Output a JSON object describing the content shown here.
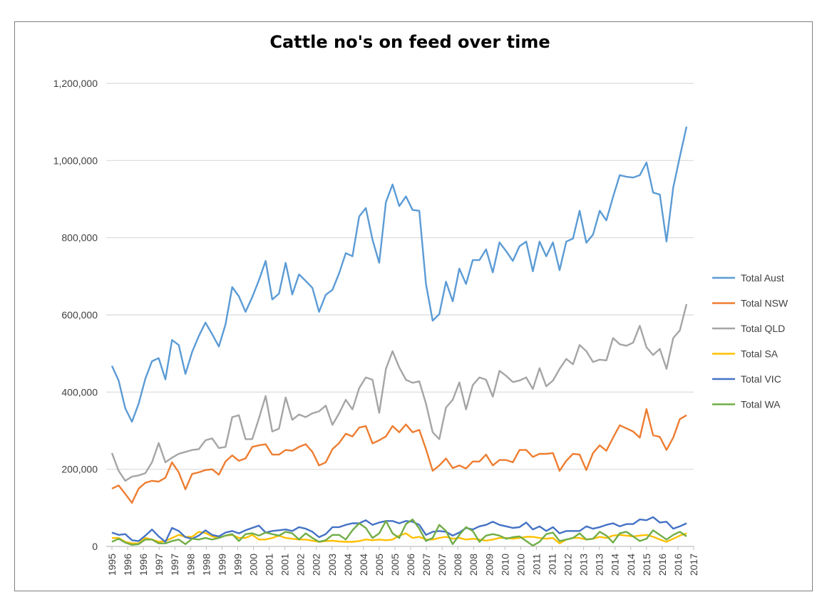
{
  "chart_data": {
    "type": "line",
    "title": "Cattle no's on feed over time",
    "xlabel": "",
    "ylabel": "",
    "ylim": [
      0,
      1200000
    ],
    "yticks": [
      0,
      200000,
      400000,
      600000,
      800000,
      1000000,
      1200000
    ],
    "ytick_labels": [
      "0",
      "200,000",
      "400,000",
      "600,000",
      "800,000",
      "1,000,000",
      "1,200,000"
    ],
    "xtick_labels": [
      "1995",
      "1996",
      "1996",
      "1997",
      "1997",
      "1998",
      "1998",
      "1999",
      "1999",
      "2000",
      "2001",
      "2001",
      "2002",
      "2002",
      "2003",
      "2004",
      "2004",
      "2005",
      "2005",
      "2006",
      "2007",
      "2007",
      "2008",
      "2008",
      "2009",
      "2010",
      "2010",
      "2011",
      "2011",
      "2012",
      "2013",
      "2013",
      "2014",
      "2014",
      "2015",
      "2016",
      "2016",
      "2017"
    ],
    "grid": "horizontal",
    "legend_position": "right",
    "series": [
      {
        "name": "Total Aust",
        "color": "#5b9bd5",
        "values": [
          468000,
          430000,
          358000,
          323000,
          370000,
          435000,
          480000,
          488000,
          433000,
          535000,
          522000,
          447000,
          504000,
          545000,
          580000,
          550000,
          518000,
          575000,
          672000,
          648000,
          608000,
          646000,
          690000,
          740000,
          640000,
          655000,
          735000,
          653000,
          705000,
          688000,
          670000,
          608000,
          652000,
          665000,
          708000,
          760000,
          752000,
          855000,
          877000,
          795000,
          735000,
          892000,
          938000,
          882000,
          907000,
          872000,
          870000,
          680000,
          585000,
          602000,
          686000,
          635000,
          720000,
          680000,
          742000,
          742000,
          770000,
          710000,
          788000,
          765000,
          740000,
          778000,
          790000,
          713000,
          790000,
          752000,
          788000,
          716000,
          790000,
          798000,
          870000,
          787000,
          808000,
          870000,
          845000,
          906000,
          962000,
          958000,
          956000,
          962000,
          995000,
          917000,
          912000,
          790000,
          930000,
          1010000,
          1088000
        ]
      },
      {
        "name": "Total NSW",
        "color": "#ed7d31",
        "values": [
          150000,
          158000,
          136000,
          113000,
          150000,
          165000,
          170000,
          168000,
          178000,
          218000,
          192000,
          148000,
          188000,
          192000,
          198000,
          200000,
          186000,
          220000,
          236000,
          222000,
          228000,
          258000,
          262000,
          265000,
          238000,
          238000,
          250000,
          248000,
          258000,
          265000,
          245000,
          210000,
          218000,
          252000,
          268000,
          292000,
          285000,
          308000,
          312000,
          267000,
          275000,
          285000,
          312000,
          296000,
          316000,
          296000,
          302000,
          252000,
          196000,
          210000,
          228000,
          203000,
          210000,
          202000,
          220000,
          220000,
          238000,
          210000,
          224000,
          224000,
          218000,
          250000,
          250000,
          232000,
          240000,
          240000,
          242000,
          196000,
          222000,
          240000,
          238000,
          198000,
          242000,
          262000,
          248000,
          282000,
          314000,
          306000,
          298000,
          282000,
          356000,
          288000,
          284000,
          250000,
          282000,
          330000,
          340000
        ]
      },
      {
        "name": "Total QLD",
        "color": "#a5a5a5",
        "values": [
          242000,
          196000,
          170000,
          181000,
          184000,
          190000,
          218000,
          268000,
          218000,
          230000,
          240000,
          245000,
          250000,
          252000,
          275000,
          280000,
          255000,
          258000,
          335000,
          340000,
          278000,
          278000,
          332000,
          390000,
          298000,
          305000,
          386000,
          328000,
          342000,
          335000,
          345000,
          350000,
          365000,
          315000,
          345000,
          380000,
          355000,
          410000,
          438000,
          432000,
          346000,
          460000,
          506000,
          464000,
          432000,
          424000,
          428000,
          370000,
          296000,
          278000,
          360000,
          380000,
          425000,
          355000,
          418000,
          438000,
          432000,
          388000,
          455000,
          442000,
          426000,
          430000,
          438000,
          408000,
          462000,
          415000,
          430000,
          460000,
          486000,
          472000,
          522000,
          506000,
          478000,
          484000,
          482000,
          540000,
          524000,
          520000,
          528000,
          572000,
          516000,
          496000,
          512000,
          460000,
          540000,
          560000,
          628000
        ]
      },
      {
        "name": "Total SA",
        "color": "#ffc000",
        "values": [
          22000,
          22000,
          12000,
          8000,
          8000,
          22000,
          18000,
          12000,
          14000,
          22000,
          30000,
          25000,
          25000,
          38000,
          35000,
          26000,
          22000,
          28000,
          30000,
          22000,
          22000,
          30000,
          18000,
          18000,
          22000,
          28000,
          22000,
          20000,
          18000,
          18000,
          15000,
          12000,
          14000,
          15000,
          13000,
          12000,
          12000,
          14000,
          18000,
          16000,
          18000,
          16000,
          18000,
          28000,
          34000,
          22000,
          25000,
          18000,
          18000,
          22000,
          25000,
          20000,
          22000,
          18000,
          20000,
          18000,
          15000,
          18000,
          22000,
          22000,
          20000,
          22000,
          25000,
          25000,
          22000,
          20000,
          22000,
          8000,
          18000,
          22000,
          22000,
          18000,
          20000,
          25000,
          22000,
          28000,
          30000,
          28000,
          26000,
          28000,
          30000,
          25000,
          18000,
          12000,
          20000,
          28000,
          34000
        ]
      },
      {
        "name": "Total VIC",
        "color": "#4472c4",
        "values": [
          36000,
          30000,
          32000,
          16000,
          14000,
          28000,
          44000,
          26000,
          12000,
          48000,
          40000,
          24000,
          20000,
          28000,
          42000,
          30000,
          26000,
          36000,
          40000,
          34000,
          42000,
          48000,
          54000,
          36000,
          40000,
          42000,
          44000,
          40000,
          50000,
          46000,
          38000,
          24000,
          32000,
          50000,
          50000,
          56000,
          60000,
          60000,
          68000,
          56000,
          62000,
          66000,
          66000,
          60000,
          66000,
          64000,
          56000,
          30000,
          38000,
          40000,
          38000,
          28000,
          36000,
          48000,
          44000,
          52000,
          56000,
          64000,
          56000,
          52000,
          48000,
          50000,
          62000,
          44000,
          52000,
          40000,
          50000,
          34000,
          40000,
          40000,
          40000,
          52000,
          46000,
          50000,
          56000,
          60000,
          52000,
          58000,
          58000,
          70000,
          68000,
          76000,
          62000,
          64000,
          46000,
          52000,
          60000
        ]
      },
      {
        "name": "Total WA",
        "color": "#70ad47",
        "values": [
          12000,
          20000,
          10000,
          4000,
          6000,
          18000,
          18000,
          8000,
          8000,
          14000,
          18000,
          6000,
          20000,
          18000,
          22000,
          18000,
          22000,
          28000,
          32000,
          14000,
          32000,
          34000,
          28000,
          36000,
          32000,
          28000,
          38000,
          34000,
          18000,
          34000,
          22000,
          12000,
          16000,
          30000,
          30000,
          18000,
          42000,
          60000,
          48000,
          22000,
          34000,
          66000,
          34000,
          22000,
          58000,
          70000,
          46000,
          14000,
          22000,
          56000,
          40000,
          6000,
          30000,
          50000,
          40000,
          12000,
          28000,
          32000,
          28000,
          20000,
          24000,
          26000,
          14000,
          2000,
          12000,
          32000,
          36000,
          14000,
          18000,
          22000,
          34000,
          18000,
          20000,
          38000,
          28000,
          10000,
          34000,
          38000,
          26000,
          14000,
          20000,
          42000,
          30000,
          18000,
          30000,
          38000,
          26000
        ]
      }
    ]
  }
}
